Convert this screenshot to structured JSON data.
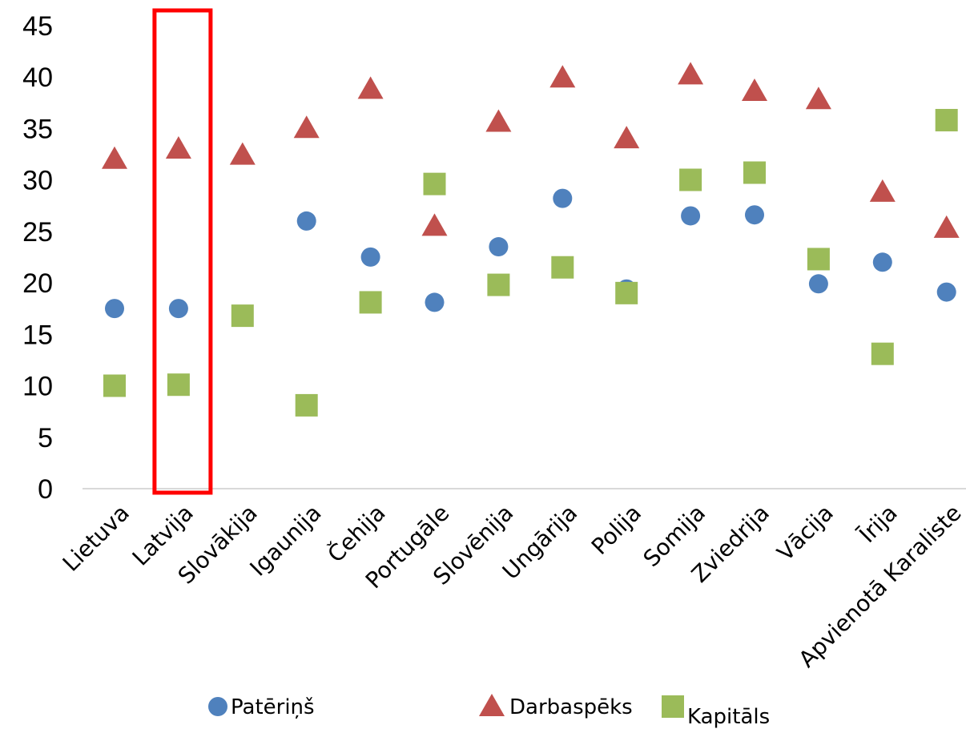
{
  "chart_data": {
    "type": "scatter",
    "categories": [
      "Lietuva",
      "Latvija",
      "Slovākija",
      "Igaunija",
      "Čehija",
      "Portugāle",
      "Slovēnija",
      "Ungārija",
      "Polija",
      "Somija",
      "Zviedrija",
      "Vācija",
      "Īrija",
      "Apvienotā Karaliste"
    ],
    "series": [
      {
        "name": "Patēriņš",
        "marker": "circle",
        "color": "#4f81bd",
        "values": [
          17.5,
          17.5,
          null,
          26.0,
          22.5,
          18.1,
          23.5,
          28.2,
          19.4,
          26.5,
          26.6,
          19.9,
          22.0,
          19.1
        ]
      },
      {
        "name": "Darbaspēks",
        "marker": "triangle",
        "color": "#c0504d",
        "values": [
          32.0,
          33.0,
          32.4,
          35.0,
          38.8,
          25.5,
          35.6,
          39.9,
          34.0,
          40.2,
          38.6,
          37.8,
          28.8,
          25.3
        ]
      },
      {
        "name": "Kapitāls",
        "marker": "square",
        "color": "#9bbb59",
        "values": [
          10.0,
          10.1,
          16.8,
          8.1,
          18.1,
          29.6,
          19.8,
          21.5,
          19.0,
          30.0,
          30.7,
          22.3,
          13.1,
          35.8
        ]
      }
    ],
    "yticks": [
      "0",
      "5",
      "10",
      "15",
      "20",
      "25",
      "30",
      "35",
      "40",
      "45"
    ],
    "ylim": [
      0,
      45
    ],
    "grid": false,
    "legend_position": "bottom",
    "highlight": {
      "category": "Latvija",
      "color": "#ff0000"
    }
  }
}
